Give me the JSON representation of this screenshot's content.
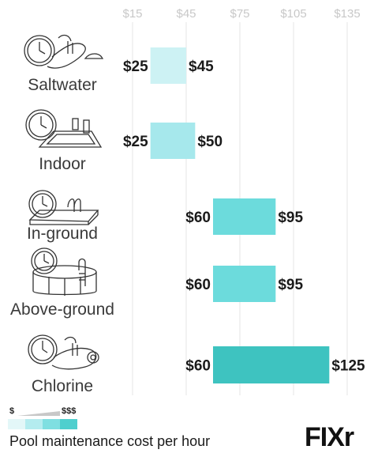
{
  "chart_data": {
    "type": "bar",
    "orientation": "horizontal",
    "x_ticks": [
      "$15",
      "$45",
      "$75",
      "$105",
      "$135"
    ],
    "x_tick_values": [
      15,
      45,
      75,
      105,
      135
    ],
    "xlim": [
      15,
      135
    ],
    "grid": true,
    "categories": [
      "Saltwater",
      "Indoor",
      "In-ground",
      "Above-ground",
      "Chlorine"
    ],
    "ranges": [
      {
        "low": 25,
        "high": 45,
        "low_label": "$25",
        "high_label": "$45",
        "color": "#cdf2f4"
      },
      {
        "low": 25,
        "high": 50,
        "low_label": "$25",
        "high_label": "$50",
        "color": "#a6e8ec"
      },
      {
        "low": 60,
        "high": 95,
        "low_label": "$60",
        "high_label": "$95",
        "color": "#6cdbdc"
      },
      {
        "low": 60,
        "high": 95,
        "low_label": "$60",
        "high_label": "$95",
        "color": "#6cdbdc"
      },
      {
        "low": 60,
        "high": 125,
        "low_label": "$60",
        "high_label": "$125",
        "color": "#3ec3c0"
      }
    ]
  },
  "legend": {
    "low_label": "$",
    "high_label": "$$$",
    "swatches": [
      "#e3f7f8",
      "#b4ecef",
      "#7fdfe1",
      "#4fcfce"
    ]
  },
  "footer": {
    "caption": "Pool maintenance cost per hour",
    "brand": "FIXr"
  },
  "icons": [
    "clock-saltwater-pool-icon",
    "clock-indoor-pool-icon",
    "clock-inground-pool-icon",
    "clock-aboveground-pool-icon",
    "clock-chlorine-pool-icon"
  ]
}
